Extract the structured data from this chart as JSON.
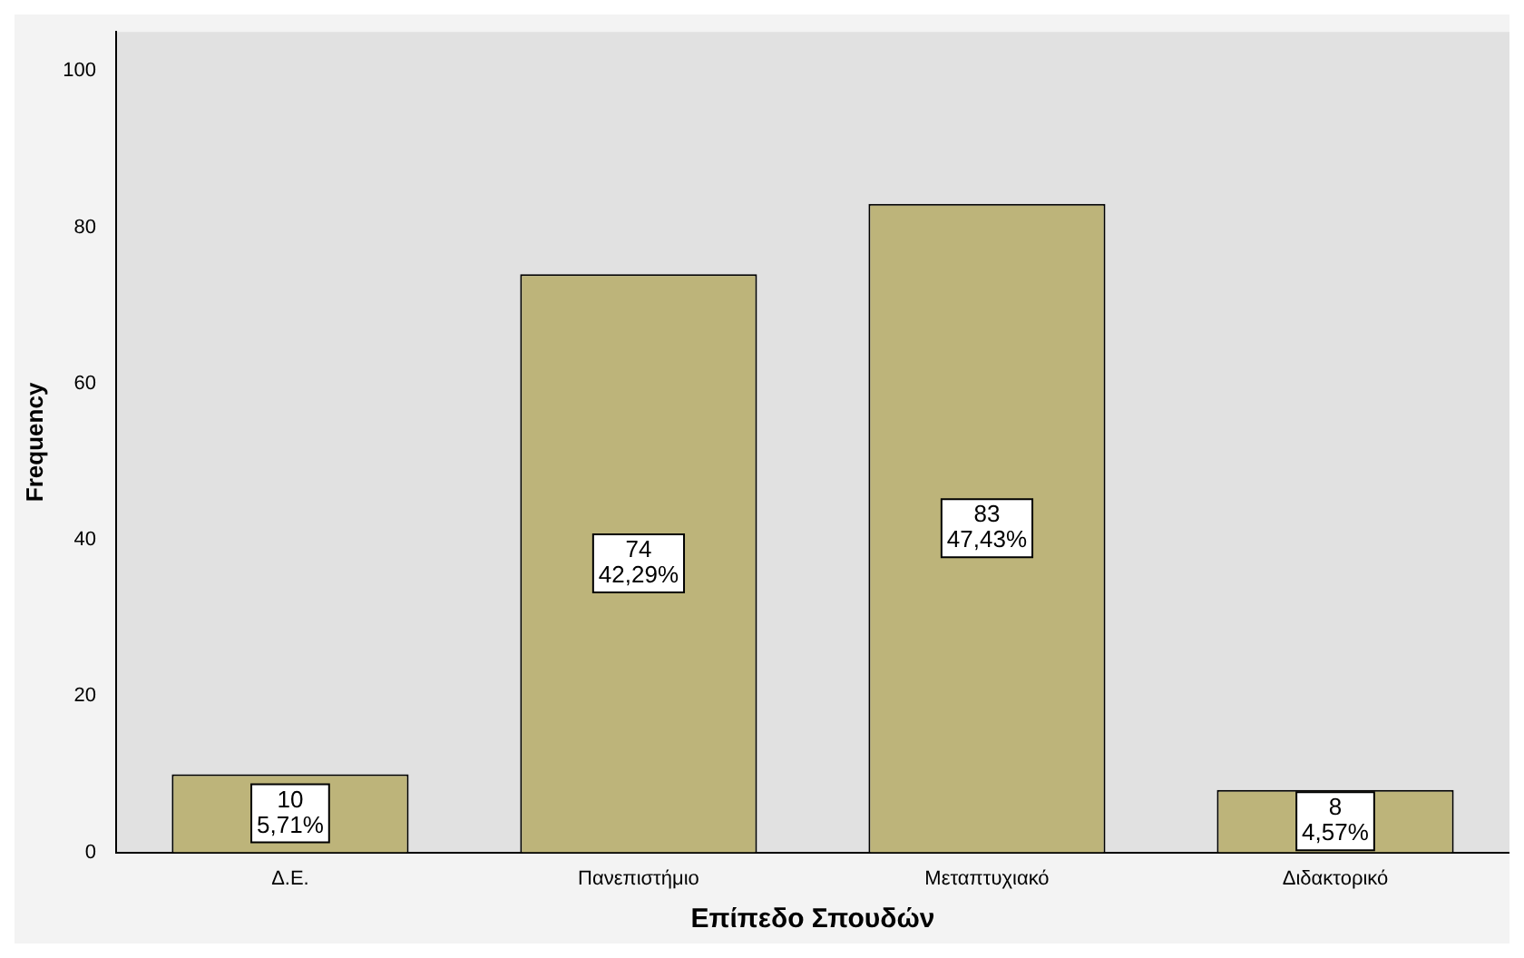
{
  "chart_data": {
    "type": "bar",
    "xlabel": "Επίπεδο Σπουδών",
    "ylabel": "Frequency",
    "categories": [
      "Δ.Ε.",
      "Πανεπιστήμιο",
      "Μεταπτυχιακό",
      "Διδακτορικό"
    ],
    "values": [
      10,
      74,
      83,
      8
    ],
    "color": "#bdb47a",
    "value_labels": [
      "10\n5,71%",
      "74\n42,29%",
      "83\n47,43%",
      "8\n4,57%"
    ],
    "ylim": [
      0,
      105
    ],
    "yticks": [
      0,
      20,
      40,
      60,
      80,
      100
    ],
    "grid": false,
    "legend": false
  }
}
